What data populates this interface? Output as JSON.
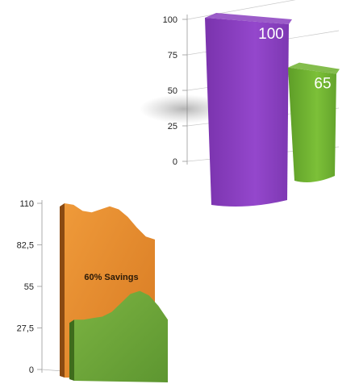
{
  "chart_data": [
    {
      "type": "bar",
      "categories": [
        "",
        ""
      ],
      "values": [
        100,
        65
      ],
      "data_labels": [
        "100",
        "65"
      ],
      "colors": [
        "#8a3fc0",
        "#6fb22e"
      ],
      "y_ticks": [
        "0",
        "25",
        "50",
        "75",
        "100"
      ],
      "ylim": [
        0,
        100
      ],
      "grid": true,
      "style": "3d"
    },
    {
      "type": "area",
      "y_ticks": [
        "0",
        "27,5",
        "55",
        "82,5",
        "110"
      ],
      "ylim": [
        0,
        110
      ],
      "x": [
        0,
        1,
        2,
        3,
        4,
        5,
        6,
        7,
        8,
        9,
        10
      ],
      "series": [
        {
          "values": [
            110,
            109,
            105,
            104,
            106,
            108,
            106,
            101,
            94,
            88,
            86
          ],
          "color": "#e68a2c"
        },
        {
          "values": [
            33,
            33,
            34,
            35,
            38,
            44,
            50,
            52,
            49,
            42,
            33
          ],
          "color": "#6ea73a"
        }
      ],
      "annotation": "60% Savings",
      "style": "3d"
    }
  ]
}
